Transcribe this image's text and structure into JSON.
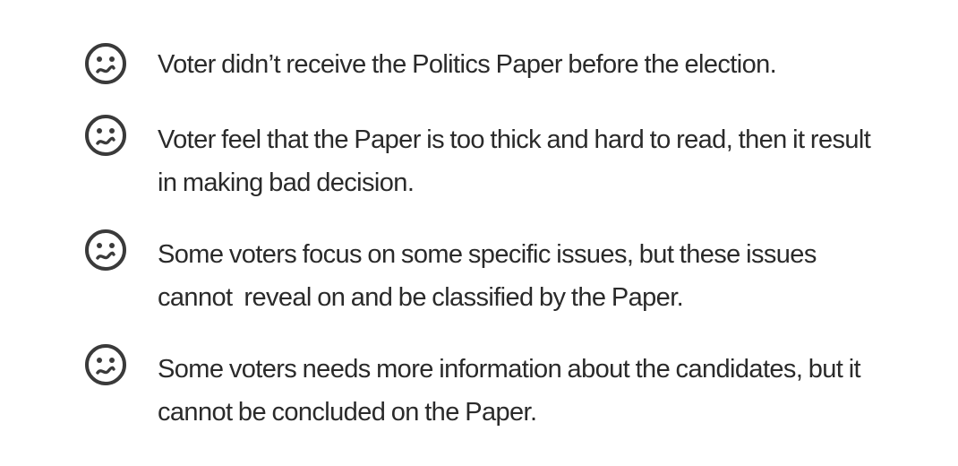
{
  "icon": {
    "name": "confused-face-icon",
    "color": "#3a3a3a"
  },
  "pain_points": [
    {
      "text": "Voter didn’t receive the Politics Paper before the election."
    },
    {
      "text": "Voter feel that the Paper is too thick and hard to read, then it result in making bad decision."
    },
    {
      "text": "Some voters focus on some specific issues, but these issues cannot  reveal on and be classified by the Paper."
    },
    {
      "text": "Some voters needs more information about the candidates, but it cannot be concluded on the Paper."
    }
  ]
}
